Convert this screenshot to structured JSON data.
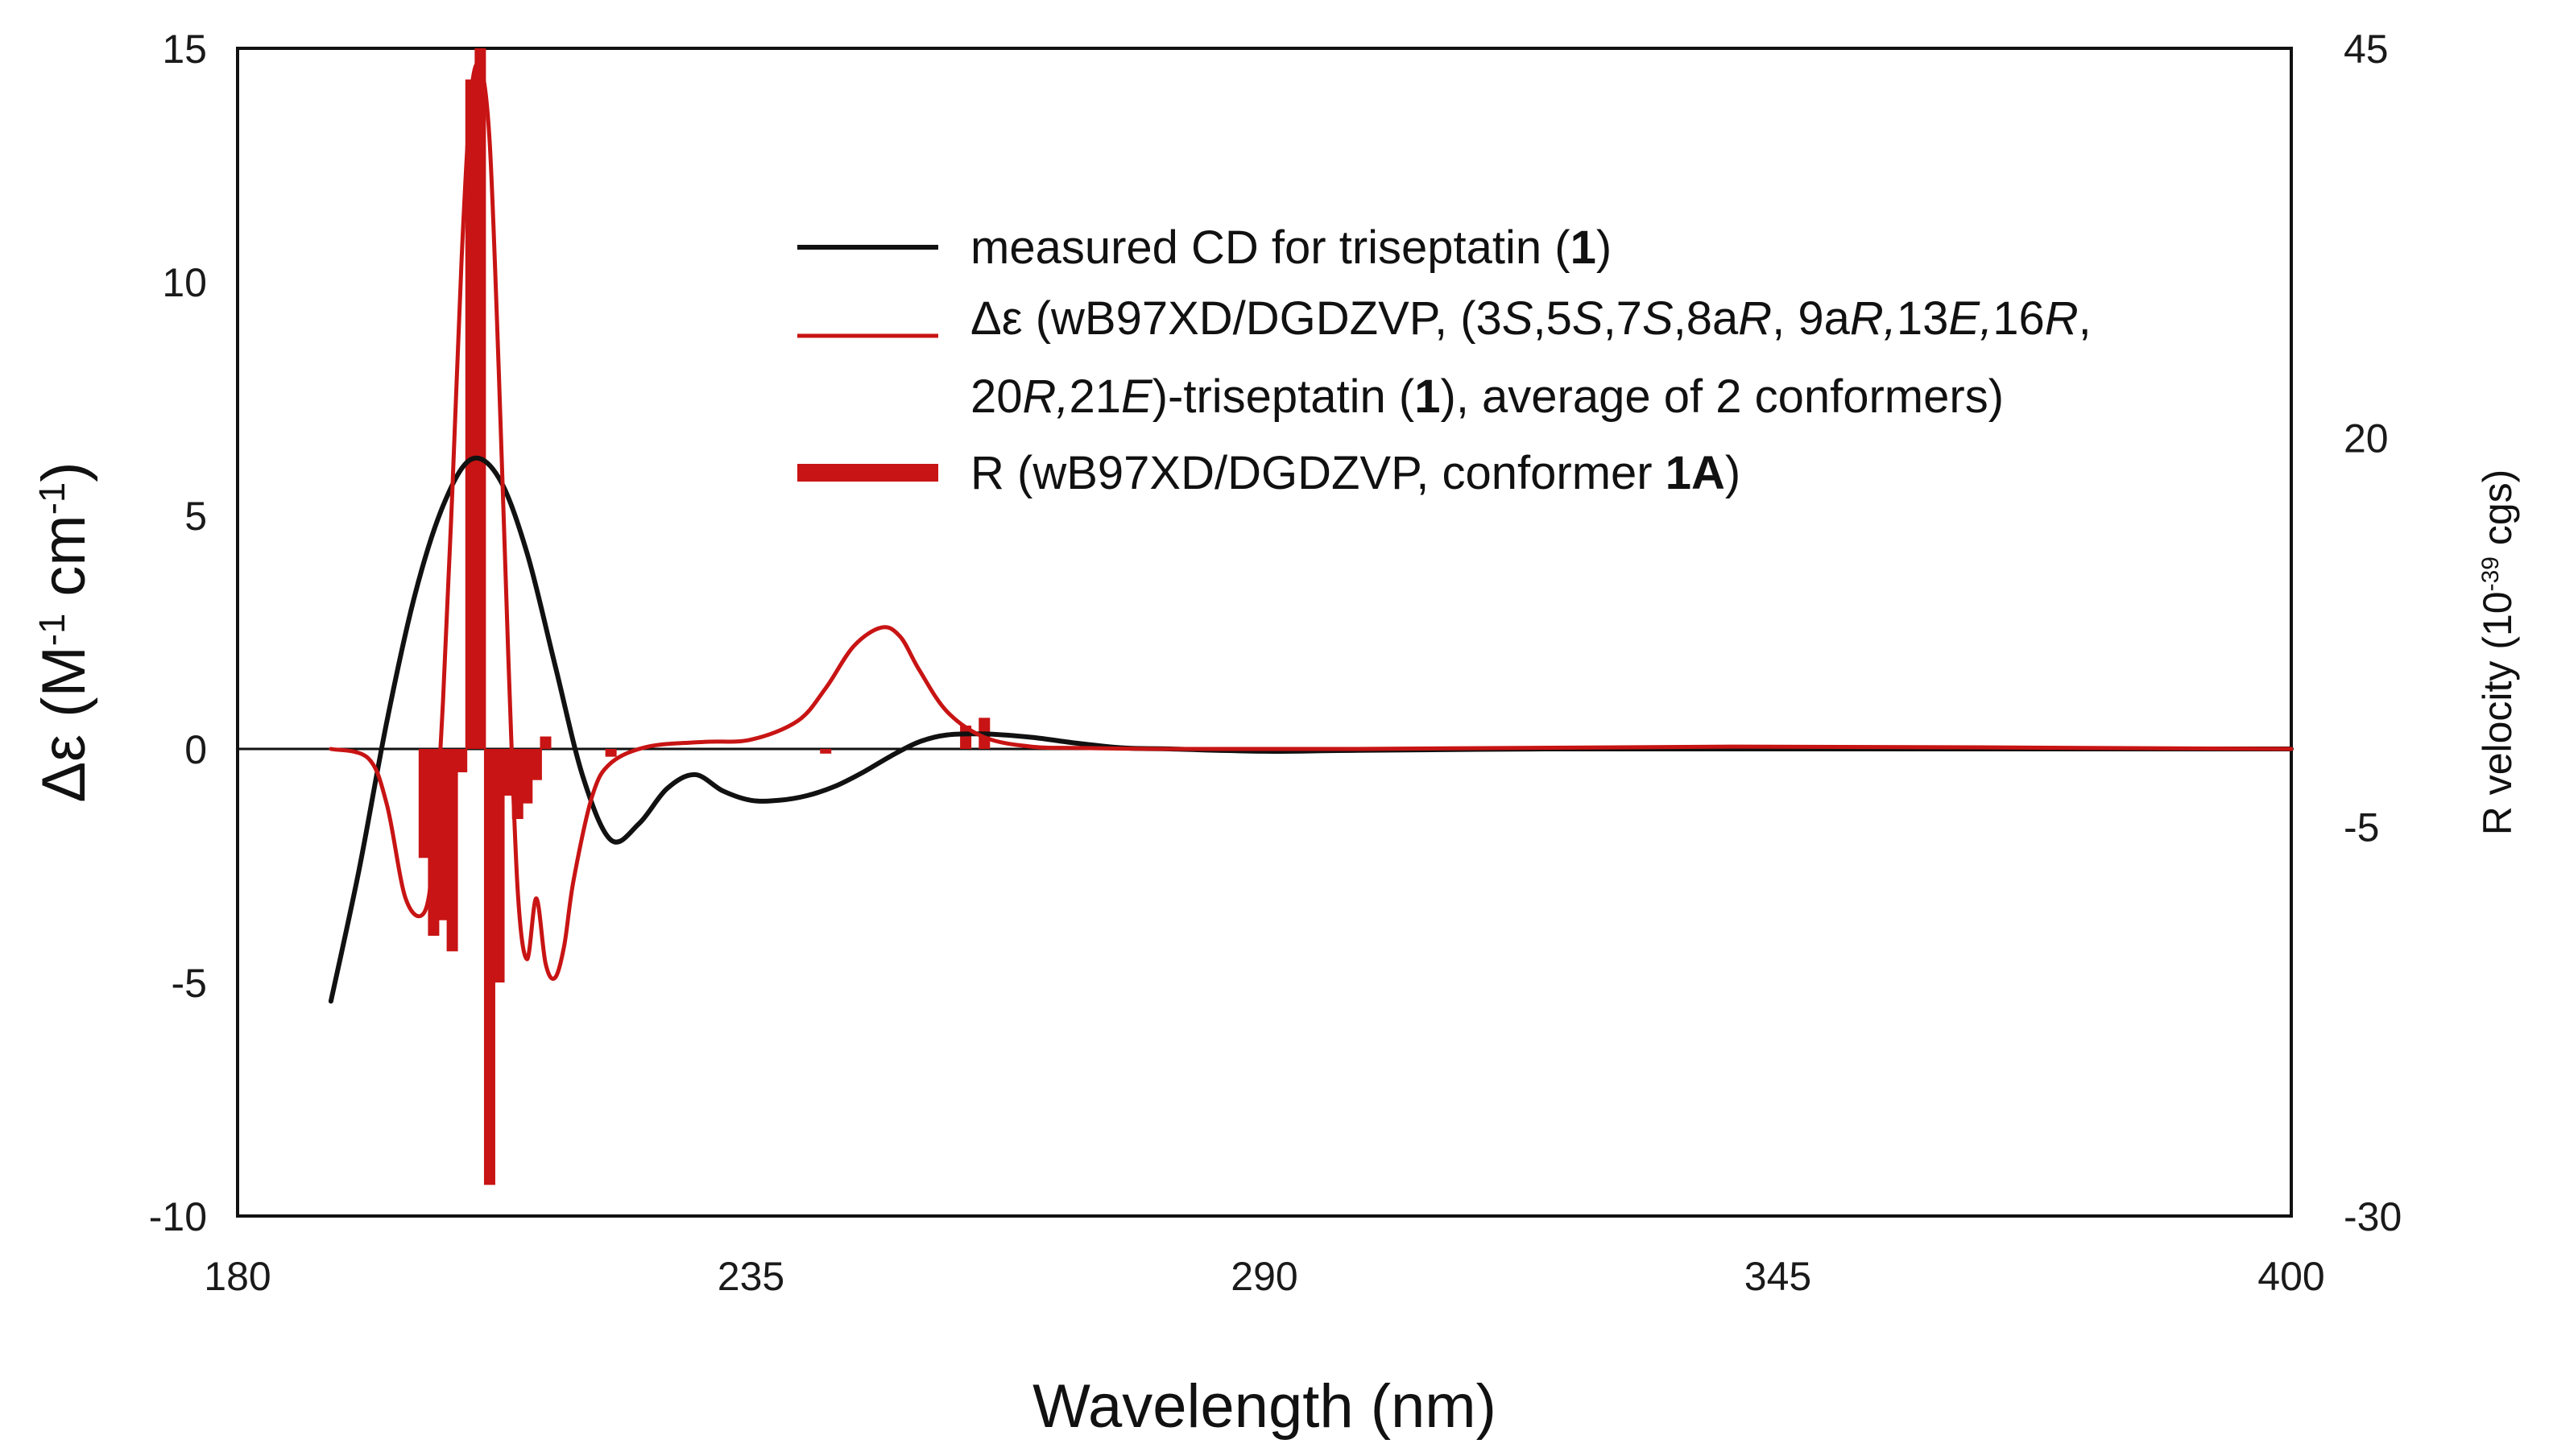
{
  "chart_data": {
    "type": "line",
    "xlabel": "Wavelength (nm)",
    "ylabel": "Δε (M-1 cm-1)",
    "ylabel_parts": [
      "Δε (M",
      "-1",
      " cm",
      "-1",
      ")"
    ],
    "y2label": "R velocity (10-39 cgs)",
    "y2label_parts": [
      "R velocity (10",
      "-39",
      " cgs)"
    ],
    "xlim": [
      180,
      400
    ],
    "ylim": [
      -10,
      15
    ],
    "y2lim": [
      -30,
      45
    ],
    "x_ticks": [
      "180",
      "235",
      "290",
      "345",
      "400"
    ],
    "y_ticks": [
      "15",
      "10",
      "5",
      "0",
      "-5",
      "-10"
    ],
    "y2_ticks": [
      "45",
      "20",
      "-5",
      "-30"
    ],
    "legend_position": "top-right",
    "legend": [
      {
        "lines": [
          [
            {
              "t": "measured CD for triseptatin ("
            },
            {
              "t": "1",
              "b": true
            },
            {
              "t": ")"
            }
          ]
        ]
      },
      {
        "lines": [
          [
            {
              "t": "Δε (wB97XD/DGDZVP, (3"
            },
            {
              "t": "S",
              "i": true
            },
            {
              "t": ",5"
            },
            {
              "t": "S",
              "i": true
            },
            {
              "t": ",7"
            },
            {
              "t": "S",
              "i": true
            },
            {
              "t": ",8a"
            },
            {
              "t": "R",
              "i": true
            },
            {
              "t": ", 9a"
            },
            {
              "t": "R,",
              "i": true
            },
            {
              "t": "13"
            },
            {
              "t": "E,",
              "i": true
            },
            {
              "t": "16"
            },
            {
              "t": "R",
              "i": true
            },
            {
              "t": ","
            }
          ],
          [
            {
              "t": "20"
            },
            {
              "t": "R,",
              "i": true
            },
            {
              "t": "21"
            },
            {
              "t": "E",
              "i": true
            },
            {
              "t": ")-triseptatin ("
            },
            {
              "t": "1",
              "b": true
            },
            {
              "t": "), average of 2 conformers)"
            }
          ]
        ]
      },
      {
        "lines": [
          [
            {
              "t": "R (wB97XD/DGDZVP, conformer "
            },
            {
              "t": "1A",
              "b": true
            },
            {
              "t": ")"
            }
          ]
        ]
      }
    ],
    "series": [
      {
        "name": "measured CD for triseptatin (1)",
        "kind": "line",
        "axis": "left",
        "color": "#111111",
        "x": [
          190,
          193,
          196,
          199,
          202,
          205,
          208,
          211,
          214,
          217,
          220,
          223,
          226,
          229,
          232,
          235,
          238,
          241,
          244,
          247,
          250,
          253,
          256,
          260,
          265,
          270,
          275,
          280,
          290,
          300,
          320,
          340,
          360,
          380,
          400
        ],
        "y": [
          -5.4,
          -2.6,
          0.6,
          3.3,
          5.2,
          6.2,
          5.8,
          4.2,
          1.8,
          -0.6,
          -1.95,
          -1.6,
          -0.85,
          -0.55,
          -0.9,
          -1.1,
          -1.1,
          -1.0,
          -0.8,
          -0.5,
          -0.15,
          0.15,
          0.3,
          0.32,
          0.25,
          0.12,
          0.02,
          0.0,
          -0.05,
          -0.03,
          0.0,
          0.0,
          0.0,
          0.0,
          0.0
        ]
      },
      {
        "name": "Δε (wB97XD/DGDZVP, (3S,5S,7S,8aR, 9aR,13E,16R, 20R,21E)-triseptatin (1), average of 2 conformers)",
        "kind": "line",
        "axis": "left",
        "color": "#c81414",
        "x": [
          190,
          194,
          196,
          198,
          200,
          201,
          202,
          203,
          204,
          205,
          206,
          207,
          208,
          209,
          210,
          211,
          212,
          213,
          214,
          215,
          216,
          218,
          220,
          224,
          230,
          235,
          240,
          243,
          246,
          249,
          251,
          253,
          256,
          260,
          265,
          270,
          280,
          300,
          340,
          400
        ],
        "y": [
          0.0,
          -0.2,
          -1.2,
          -3.2,
          -3.5,
          -2.2,
          1.0,
          5.5,
          10.5,
          14.0,
          14.6,
          13.0,
          8.0,
          2.0,
          -3.0,
          -4.5,
          -3.2,
          -4.6,
          -4.9,
          -4.2,
          -2.8,
          -1.0,
          -0.3,
          0.05,
          0.15,
          0.2,
          0.6,
          1.3,
          2.2,
          2.6,
          2.4,
          1.7,
          0.8,
          0.25,
          0.05,
          0.02,
          0.0,
          0.0,
          0.05,
          0.0
        ]
      },
      {
        "name": "R (wB97XD/DGDZVP, conformer 1A)",
        "kind": "stick",
        "axis": "right",
        "color": "#c81414",
        "x": [
          200,
          201,
          202,
          203,
          204,
          205,
          206,
          207,
          208,
          209,
          210,
          211,
          212,
          213,
          220,
          243,
          258,
          260
        ],
        "y": [
          -7,
          -12,
          -11,
          -13,
          -1.5,
          43,
          45,
          -28,
          -15,
          -3,
          -4.5,
          -3.5,
          -2,
          0.8,
          -0.5,
          -0.3,
          1.5,
          2.0
        ]
      }
    ]
  }
}
